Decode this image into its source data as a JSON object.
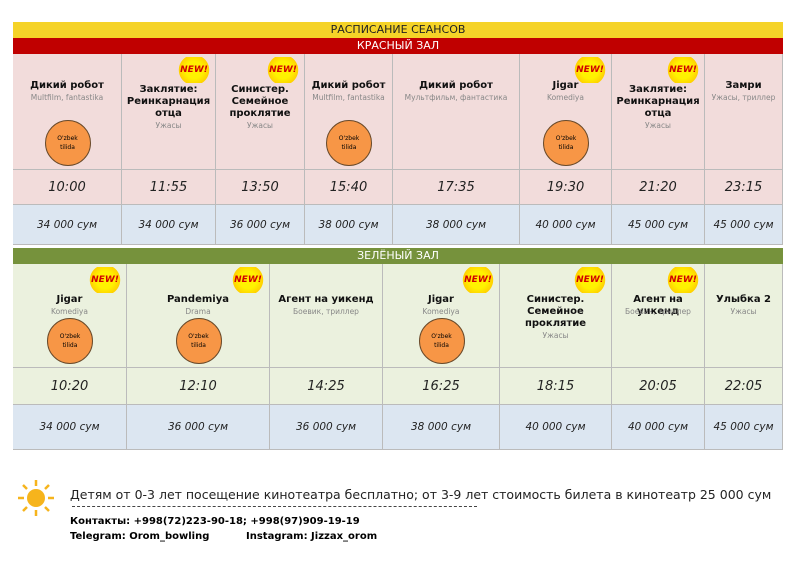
{
  "title": "РАСПИСАНИЕ СЕАНСОВ",
  "halls": [
    {
      "name": "КРАСНЫЙ ЗАЛ",
      "sessions": [
        {
          "title": "Дикий робот",
          "genre": "Multfilm, fantastika",
          "lang": "O'zbek tilida",
          "time": "10:00",
          "price": "34 000 сум"
        },
        {
          "title": "Заклятие: Реинкарнация отца",
          "genre": "Ужасы",
          "badge": "NEW!",
          "time": "11:55",
          "price": "34 000 сум"
        },
        {
          "title": "Синистер. Семейное проклятие",
          "genre": "Ужасы",
          "badge": "NEW!",
          "time": "13:50",
          "price": "36 000 сум"
        },
        {
          "title": "Дикий робот",
          "genre": "Multfilm, fantastika",
          "lang": "O'zbek tilida",
          "time": "15:40",
          "price": "38 000 сум"
        },
        {
          "title": "Дикий робот",
          "genre": "Мультфильм, фантастика",
          "time": "17:35",
          "price": "38 000 сум"
        },
        {
          "title": "Jigar",
          "genre": "Komediya",
          "badge": "NEW!",
          "lang": "O'zbek tilida",
          "time": "19:30",
          "price": "40 000 сум"
        },
        {
          "title": "Заклятие: Реинкарнация отца",
          "genre": "Ужасы",
          "badge": "NEW!",
          "time": "21:20",
          "price": "45 000 сум"
        },
        {
          "title": "Замри",
          "genre": "Ужасы, триллер",
          "time": "23:15",
          "price": "45 000 сум"
        }
      ]
    },
    {
      "name": "ЗЕЛЁНЫЙ ЗАЛ",
      "sessions": [
        {
          "title": "Jigar",
          "genre": "Komediya",
          "badge": "NEW!",
          "lang": "O'zbek tilida",
          "time": "10:20",
          "price": "34 000 сум"
        },
        {
          "title": "Pandemiya",
          "genre": "Drama",
          "badge": "NEW!",
          "lang": "O'zbek tilida",
          "time": "12:10",
          "price": "36 000 сум"
        },
        {
          "title": "Агент на уикенд",
          "genre": "Боевик, триллер",
          "time": "14:25",
          "price": "36 000 сум"
        },
        {
          "title": "Jigar",
          "genre": "Komediya",
          "badge": "NEW!",
          "lang": "O'zbek tilida",
          "time": "16:25",
          "price": "38 000 сум"
        },
        {
          "title": "Синистер. Семейное проклятие",
          "genre": "Ужасы",
          "badge": "NEW!",
          "time": "18:15",
          "price": "40 000 сум"
        },
        {
          "title": "Агент на уикенд",
          "genre": "Боевик, триллер",
          "badge": "NEW!",
          "time": "20:05",
          "price": "40 000 сум"
        },
        {
          "title": "Улыбка 2",
          "genre": "Ужасы",
          "time": "22:05",
          "price": "45 000 сум"
        }
      ]
    }
  ],
  "footer": {
    "note": "Детям от 0-3 лет посещение кинотеатра бесплатно; от 3-9 лет стоимость билета в кинотеатр 25 000 сум",
    "contacts": "Контакты: +998(72)223-90-18; +998(97)909-19-19",
    "telegram": "Telegram: Orom_bowling",
    "instagram": "Instagram: Jizzax_orom"
  }
}
